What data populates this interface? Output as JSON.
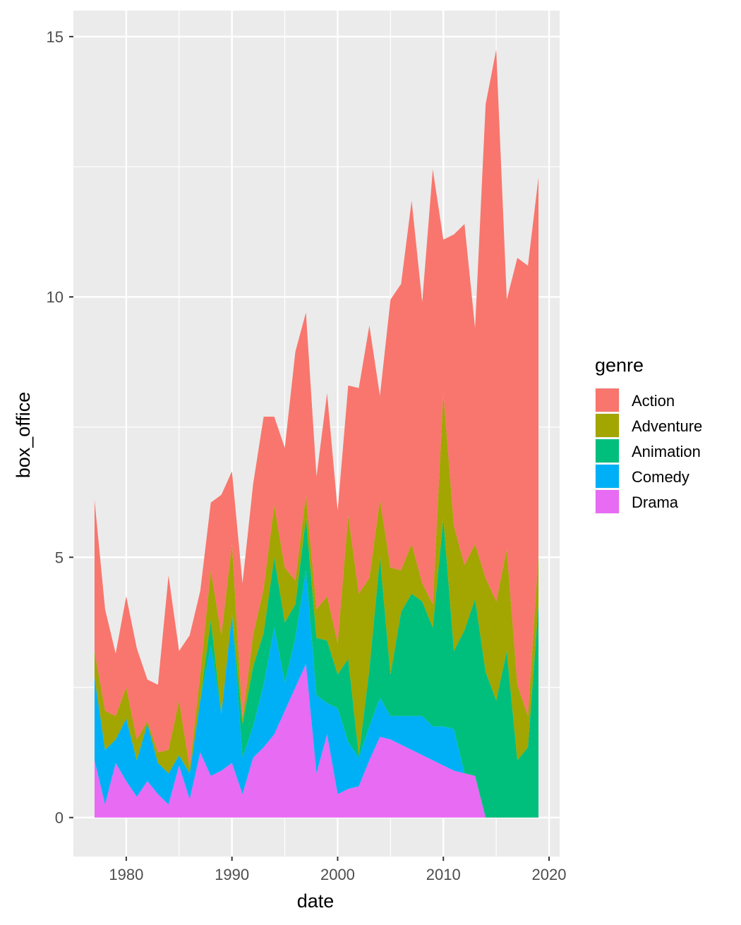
{
  "chart_data": {
    "type": "area",
    "stacked": true,
    "xlabel": "date",
    "ylabel": "box_office",
    "xlim": [
      1975.0,
      2021.0
    ],
    "ylim": [
      -0.75,
      15.5
    ],
    "xticks": [
      1980,
      1990,
      2000,
      2010,
      2020
    ],
    "yticks": [
      0,
      5,
      10,
      15
    ],
    "grid": true,
    "legend": {
      "title": "genre",
      "position": "right"
    },
    "x": [
      1977,
      1978,
      1979,
      1980,
      1981,
      1982,
      1983,
      1984,
      1985,
      1986,
      1987,
      1988,
      1989,
      1990,
      1991,
      1992,
      1993,
      1994,
      1995,
      1996,
      1997,
      1998,
      1999,
      2000,
      2001,
      2002,
      2003,
      2004,
      2005,
      2006,
      2007,
      2008,
      2009,
      2010,
      2011,
      2012,
      2013,
      2014,
      2015,
      2016,
      2017,
      2018,
      2019
    ],
    "series": [
      {
        "name": "Drama",
        "color": "#E76BF3",
        "values": [
          1.1,
          0.25,
          1.05,
          0.7,
          0.4,
          0.7,
          0.45,
          0.25,
          1.0,
          0.35,
          1.25,
          0.8,
          0.9,
          1.05,
          0.45,
          1.15,
          1.35,
          1.6,
          2.05,
          2.5,
          2.95,
          0.85,
          1.6,
          0.45,
          0.55,
          0.6,
          1.1,
          1.55,
          1.5,
          1.4,
          1.3,
          1.2,
          1.1,
          1.0,
          0.9,
          0.85,
          0.8,
          0,
          0,
          0,
          0,
          0,
          0
        ]
      },
      {
        "name": "Comedy",
        "color": "#00B0F6",
        "values": [
          1.6,
          1.05,
          0.45,
          1.2,
          0.7,
          1.1,
          0.6,
          0.6,
          0.2,
          0.5,
          1.0,
          2.5,
          1.1,
          2.85,
          0.7,
          0.6,
          1.2,
          2.05,
          0.55,
          0.95,
          1.8,
          1.5,
          0.6,
          1.65,
          0.9,
          0.55,
          0.65,
          0.75,
          0.45,
          0.55,
          0.65,
          0.75,
          0.65,
          0.75,
          0.8,
          0,
          0,
          0,
          0,
          0,
          0,
          0,
          0
        ]
      },
      {
        "name": "Animation",
        "color": "#00BF7D",
        "values": [
          0,
          0,
          0,
          0,
          0,
          0,
          0,
          0,
          0,
          0,
          0,
          0.5,
          0,
          0,
          0.65,
          1.15,
          1.0,
          1.35,
          1.15,
          0.65,
          1.0,
          1.1,
          1.2,
          0.65,
          1.6,
          0.05,
          1.1,
          2.7,
          0.8,
          2.0,
          2.35,
          2.2,
          1.9,
          4.0,
          1.5,
          2.75,
          3.4,
          2.8,
          2.25,
          3.2,
          1.1,
          1.35,
          4.1
        ]
      },
      {
        "name": "Adventure",
        "color": "#A3A500",
        "values": [
          0.5,
          0.75,
          0.45,
          0.6,
          0.4,
          0.05,
          0.2,
          0.45,
          1.05,
          0.1,
          0.5,
          0.95,
          1.5,
          1.35,
          0.1,
          0.6,
          0.85,
          1.0,
          1.05,
          0.45,
          0.45,
          0.55,
          0.85,
          0.6,
          2.75,
          3.1,
          1.75,
          1.1,
          2.05,
          0.8,
          0.95,
          0.35,
          0.45,
          2.4,
          2.4,
          1.25,
          1.05,
          1.8,
          1.9,
          1.95,
          1.45,
          0.6,
          0.95
        ]
      },
      {
        "name": "Action",
        "color": "#F8766D",
        "values": [
          2.9,
          1.95,
          1.2,
          1.75,
          1.75,
          0.8,
          1.3,
          3.35,
          0.95,
          2.55,
          1.6,
          1.3,
          2.7,
          1.4,
          2.6,
          2.9,
          3.3,
          1.7,
          2.3,
          4.4,
          3.5,
          2.55,
          3.9,
          2.55,
          2.5,
          3.95,
          4.85,
          2.0,
          5.15,
          5.5,
          6.6,
          5.4,
          8.35,
          2.95,
          5.6,
          6.55,
          4.15,
          9.1,
          10.6,
          4.8,
          8.2,
          8.65,
          7.25
        ]
      }
    ],
    "stack_order_top_to_bottom": [
      "Action",
      "Adventure",
      "Animation",
      "Comedy",
      "Drama"
    ]
  }
}
